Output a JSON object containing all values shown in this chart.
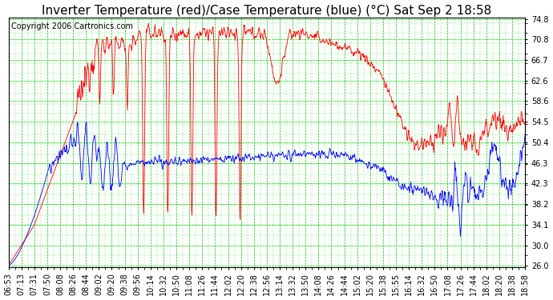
{
  "title": "Inverter Temperature (red)/Case Temperature (blue) (°C) Sat Sep 2 18:58",
  "copyright": "Copyright 2006 Cartronics.com",
  "y_ticks": [
    26.0,
    30.0,
    34.1,
    38.2,
    42.3,
    46.3,
    50.4,
    54.5,
    58.6,
    62.6,
    66.7,
    70.8,
    74.8
  ],
  "x_labels": [
    "06:53",
    "07:13",
    "07:31",
    "07:50",
    "08:08",
    "08:26",
    "08:44",
    "09:02",
    "09:20",
    "09:38",
    "09:56",
    "10:14",
    "10:32",
    "10:50",
    "11:08",
    "11:26",
    "11:44",
    "12:02",
    "12:20",
    "12:38",
    "12:56",
    "13:14",
    "13:32",
    "13:50",
    "14:08",
    "14:26",
    "14:44",
    "15:02",
    "15:20",
    "15:38",
    "15:55",
    "16:14",
    "16:32",
    "16:50",
    "17:08",
    "17:26",
    "17:44",
    "18:02",
    "18:20",
    "18:38",
    "18:58"
  ],
  "bg_color": "#ffffff",
  "plot_bg_color": "#ffffff",
  "grid_color": "#00cc00",
  "red_color": "#ff0000",
  "blue_color": "#0000ff",
  "title_fontsize": 11,
  "tick_fontsize": 7,
  "copyright_fontsize": 7,
  "ymin": 26.0,
  "ymax": 74.8
}
